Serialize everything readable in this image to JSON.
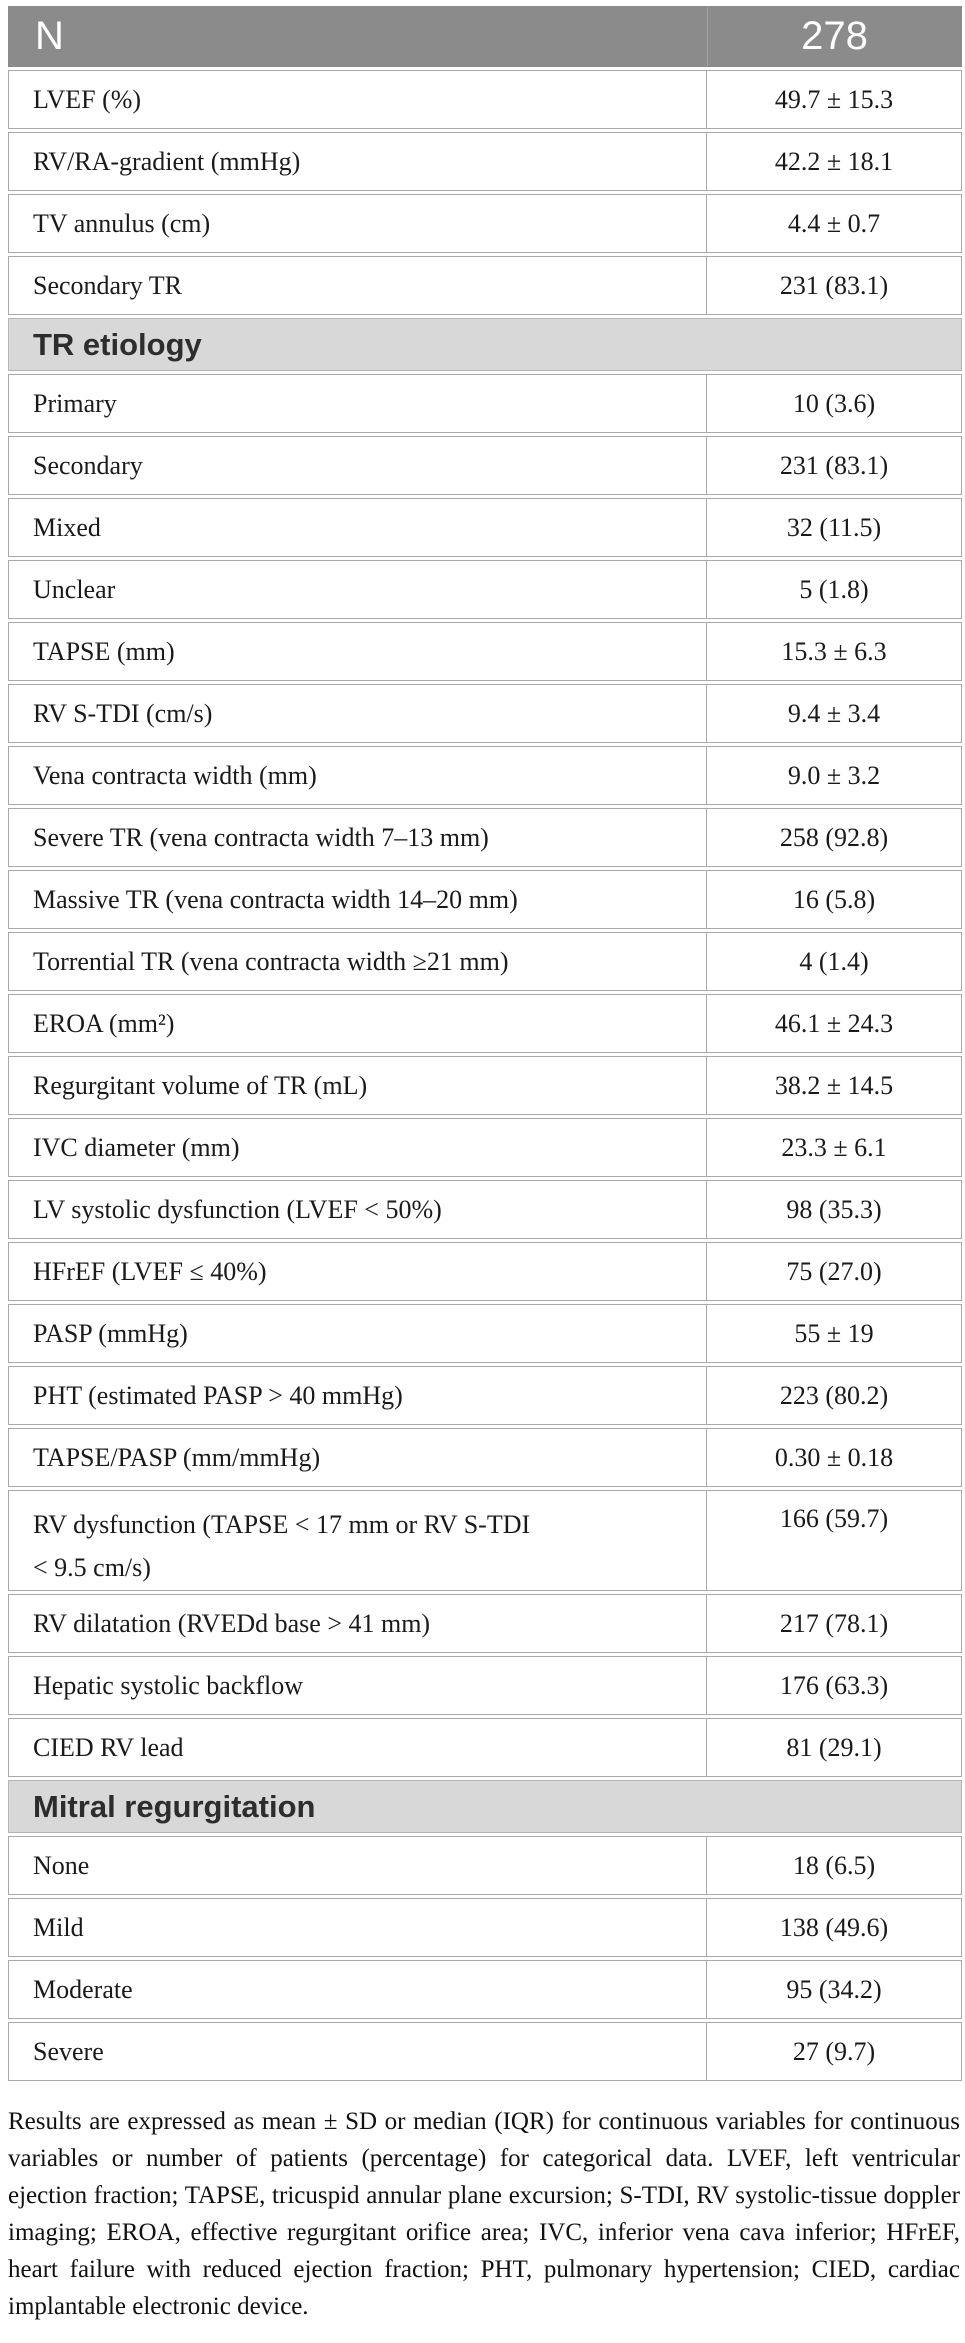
{
  "table": {
    "header": {
      "label": "N",
      "value": "278"
    },
    "rows": [
      {
        "type": "data",
        "label": "LVEF (%)",
        "value": "49.7 ± 15.3"
      },
      {
        "type": "data",
        "label": "RV/RA-gradient (mmHg)",
        "value": "42.2 ± 18.1"
      },
      {
        "type": "data",
        "label": "TV annulus (cm)",
        "value": "4.4 ± 0.7"
      },
      {
        "type": "data",
        "label": "Secondary TR",
        "value": "231 (83.1)"
      },
      {
        "type": "section",
        "label": "TR etiology"
      },
      {
        "type": "data",
        "label": "Primary",
        "value": "10 (3.6)"
      },
      {
        "type": "data",
        "label": "Secondary",
        "value": "231 (83.1)"
      },
      {
        "type": "data",
        "label": "Mixed",
        "value": "32 (11.5)"
      },
      {
        "type": "data",
        "label": "Unclear",
        "value": "5 (1.8)"
      },
      {
        "type": "data",
        "label": "TAPSE (mm)",
        "value": "15.3 ± 6.3"
      },
      {
        "type": "data",
        "label": "RV S-TDI (cm/s)",
        "value": "9.4 ± 3.4"
      },
      {
        "type": "data",
        "label": "Vena contracta width (mm)",
        "value": "9.0 ± 3.2"
      },
      {
        "type": "data",
        "label": "Severe TR (vena contracta width 7–13 mm)",
        "value": "258 (92.8)"
      },
      {
        "type": "data",
        "label": "Massive TR (vena contracta width 14–20 mm)",
        "value": "16 (5.8)"
      },
      {
        "type": "data",
        "label": "Torrential TR (vena contracta width ≥21 mm)",
        "value": "4 (1.4)"
      },
      {
        "type": "data",
        "label": "EROA (mm²)",
        "value": "46.1 ± 24.3"
      },
      {
        "type": "data",
        "label": "Regurgitant volume of TR (mL)",
        "value": "38.2 ± 14.5"
      },
      {
        "type": "data",
        "label": "IVC diameter (mm)",
        "value": "23.3 ± 6.1"
      },
      {
        "type": "data",
        "label": "LV systolic dysfunction (LVEF < 50%)",
        "value": "98 (35.3)"
      },
      {
        "type": "data",
        "label": "HFrEF (LVEF ≤ 40%)",
        "value": "75 (27.0)"
      },
      {
        "type": "data",
        "label": "PASP (mmHg)",
        "value": "55 ± 19"
      },
      {
        "type": "data",
        "label": "PHT (estimated PASP > 40 mmHg)",
        "value": "223 (80.2)"
      },
      {
        "type": "data",
        "label": "TAPSE/PASP (mm/mmHg)",
        "value": "0.30 ± 0.18"
      },
      {
        "type": "data",
        "label": "RV dysfunction (TAPSE < 17 mm or RV S-TDI < 9.5 cm/s)",
        "value": "166 (59.7)",
        "tall": true
      },
      {
        "type": "data",
        "label": "RV dilatation (RVEDd base > 41 mm)",
        "value": "217 (78.1)"
      },
      {
        "type": "data",
        "label": "Hepatic systolic backflow",
        "value": "176 (63.3)"
      },
      {
        "type": "data",
        "label": "CIED RV lead",
        "value": "81 (29.1)"
      },
      {
        "type": "section",
        "label": "Mitral regurgitation"
      },
      {
        "type": "data",
        "label": "None",
        "value": "18 (6.5)"
      },
      {
        "type": "data",
        "label": "Mild",
        "value": "138 (49.6)"
      },
      {
        "type": "data",
        "label": "Moderate",
        "value": "95 (34.2)"
      },
      {
        "type": "data",
        "label": "Severe",
        "value": "27 (9.7)"
      }
    ]
  },
  "footnote": "Results are expressed as mean ± SD or median (IQR) for continuous variables for continuous variables or number of patients (percentage) for categorical data. LVEF, left ventricular ejection fraction; TAPSE, tricuspid annular plane excursion; S-TDI, RV systolic-tissue doppler imaging; EROA, effective regurgitant orifice area; IVC, inferior vena cava inferior; HFrEF, heart failure with reduced ejection fraction; PHT, pulmonary hypertension; CIED, cardiac implantable electronic device.",
  "colors": {
    "header_bg": "#8b8b8b",
    "header_text": "#ffffff",
    "section_bg": "#d8d8d8",
    "border": "#a9a9a9",
    "text": "#1a1a1a"
  }
}
